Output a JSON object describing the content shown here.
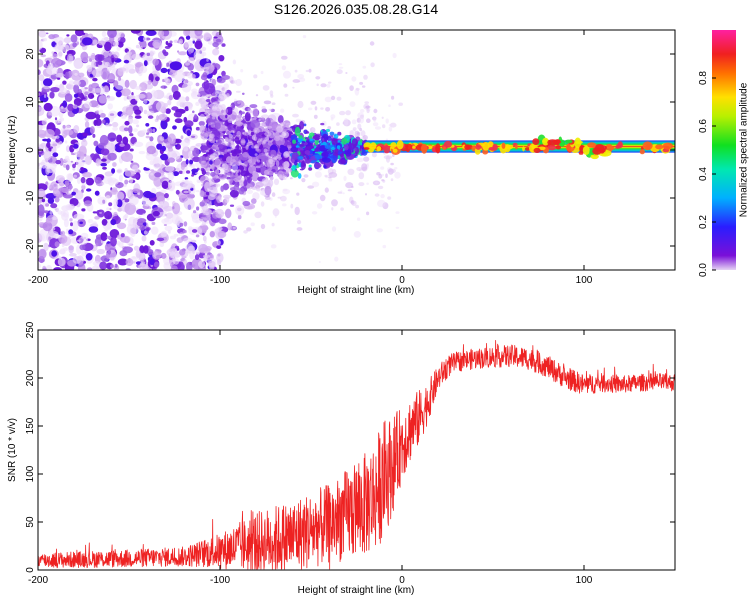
{
  "figure": {
    "title": "S126.2026.035.08.28.G14"
  },
  "colors": {
    "snr_line": "#ee2222",
    "axis": "#000000",
    "background": "#ffffff"
  },
  "chart_data": [
    {
      "type": "heatmap",
      "name": "spectrogram",
      "title": "S126.2026.035.08.28.G14",
      "xlabel": "Height of straight line (km)",
      "ylabel": "Frequency (Hz)",
      "xlim": [
        -200,
        150
      ],
      "ylim": [
        -25,
        25
      ],
      "x_ticks": [
        -200,
        -100,
        0,
        100
      ],
      "x_tick_labels": [
        "-200",
        "-100",
        "0",
        "100"
      ],
      "y_ticks": [
        -20,
        -10,
        0,
        10,
        20
      ],
      "y_tick_labels": [
        "-20",
        "-10",
        "0",
        "10",
        "20"
      ],
      "colormap": "rainbow (purple-blue-cyan-green-yellow-red-magenta)",
      "colorbar": {
        "label": "Normalized spectral amplitude",
        "range": [
          0.0,
          1.0
        ],
        "ticks": [
          0.0,
          0.2,
          0.4,
          0.6,
          0.8
        ],
        "tick_labels": [
          "0.0",
          "0.2",
          "0.4",
          "0.6",
          "0.8"
        ]
      },
      "regions": [
        {
          "x_range": [
            -200,
            -110
          ],
          "freq_spread_hz": 25,
          "amplitude": "low (0.05-0.15)",
          "description": "scattered noise across all frequencies"
        },
        {
          "x_range": [
            -110,
            -60
          ],
          "freq_spread_hz": 8,
          "amplitude": "low-medium (0.1-0.2)",
          "description": "energy concentrating near 0 Hz"
        },
        {
          "x_range": [
            -60,
            -20
          ],
          "freq_spread_hz": 4,
          "amplitude": "medium (0.2-0.5)",
          "description": "narrowing band with cyan/green patches"
        },
        {
          "x_range": [
            -20,
            150
          ],
          "freq_center_hz": 0.5,
          "freq_spread_hz": 1.5,
          "amplitude": "high (0.8-1.0)",
          "description": "stable narrow line near 0-1 Hz"
        }
      ]
    },
    {
      "type": "line",
      "name": "snr",
      "xlabel": "Height of straight line (km)",
      "ylabel": "SNR (10 * v/v)",
      "xlim": [
        -200,
        150
      ],
      "ylim": [
        0,
        250
      ],
      "x_ticks": [
        -200,
        -100,
        0,
        100
      ],
      "x_tick_labels": [
        "-200",
        "-100",
        "0",
        "100"
      ],
      "y_ticks": [
        0,
        50,
        100,
        150,
        200,
        250
      ],
      "y_tick_labels": [
        "0",
        "50",
        "100",
        "150",
        "200",
        "250"
      ],
      "series": [
        {
          "name": "SNR",
          "color": "#ee2222",
          "trend_x": [
            -200,
            -150,
            -120,
            -100,
            -80,
            -60,
            -40,
            -30,
            -20,
            -15,
            -10,
            -5,
            0,
            5,
            10,
            15,
            20,
            25,
            30,
            40,
            50,
            60,
            70,
            80,
            90,
            100,
            110,
            120,
            130,
            140,
            150
          ],
          "trend_y": [
            10,
            12,
            14,
            20,
            28,
            35,
            48,
            58,
            68,
            78,
            95,
            110,
            132,
            148,
            160,
            178,
            200,
            212,
            217,
            220,
            222,
            223,
            220,
            212,
            200,
            193,
            195,
            193,
            195,
            196,
            195
          ],
          "noise_x": [
            -200,
            -120,
            -100,
            -80,
            -60,
            -40,
            -20,
            -10,
            0,
            10,
            20,
            30,
            60,
            90,
            120,
            150
          ],
          "noise_amp": [
            6,
            8,
            14,
            25,
            30,
            32,
            42,
            48,
            30,
            22,
            10,
            8,
            9,
            9,
            7,
            7
          ]
        }
      ]
    }
  ]
}
